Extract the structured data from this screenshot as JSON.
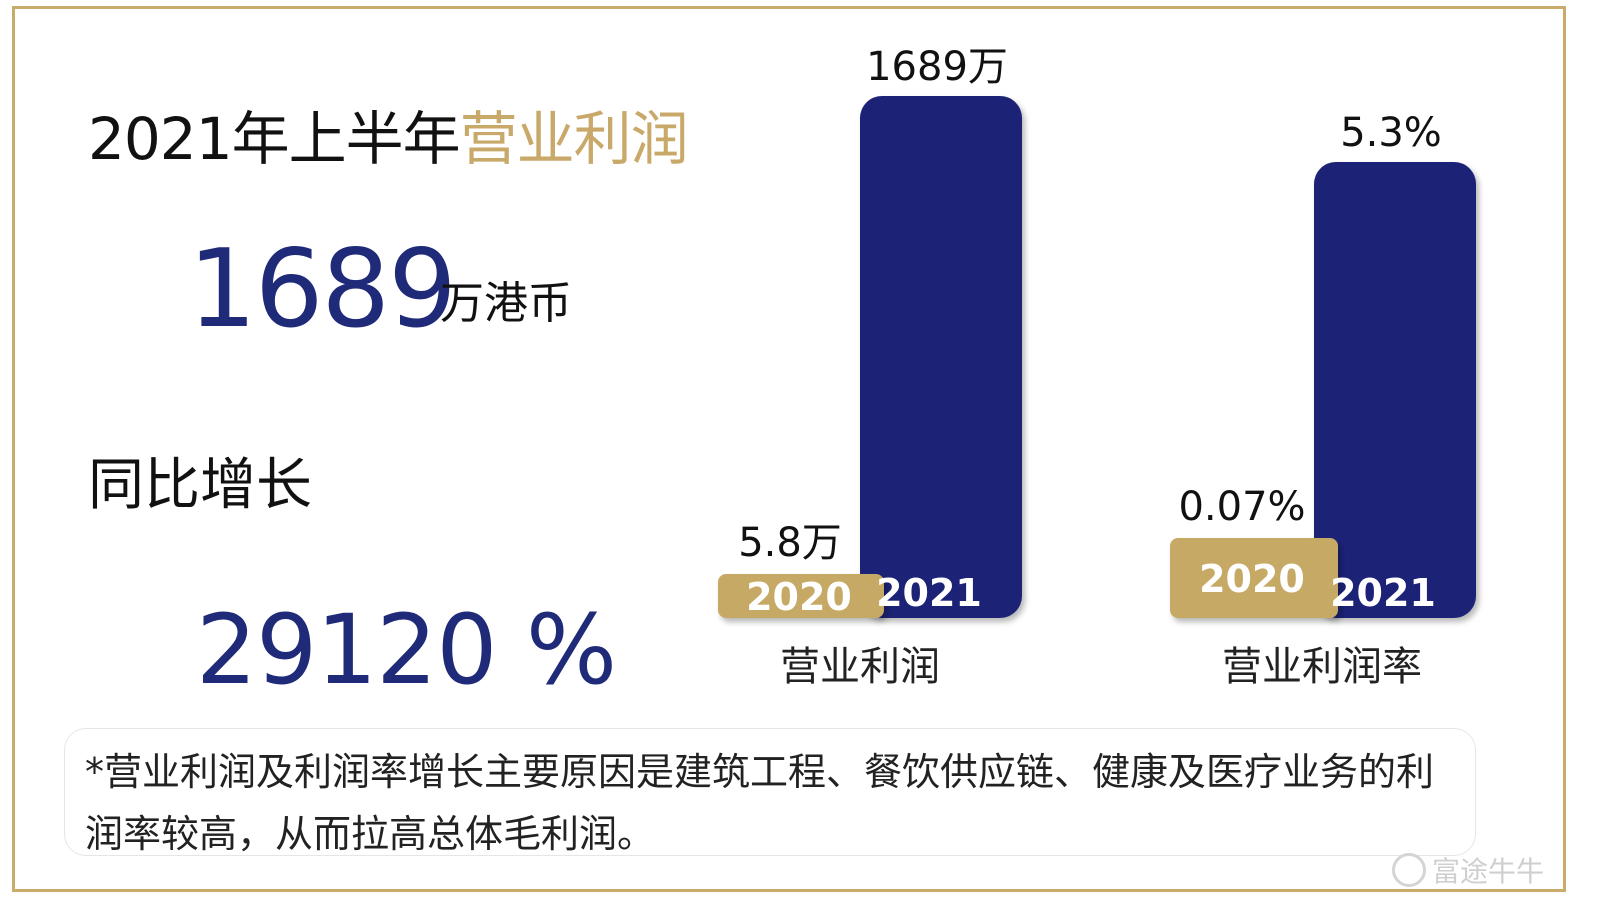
{
  "header": {
    "title_main": "2021年上半年",
    "title_accent": "营业利润"
  },
  "highlight": {
    "value": "1689",
    "unit": "万港币",
    "yoy_label": "同比增长",
    "yoy_value": "29120 %"
  },
  "chart_data": [
    {
      "type": "bar",
      "category_label": "营业利润",
      "categories": [
        "2020",
        "2021"
      ],
      "values": [
        5.8,
        1689
      ],
      "value_labels": [
        "5.8万",
        "1689万"
      ],
      "colors": [
        "#c6a965",
        "#1e2376"
      ]
    },
    {
      "type": "bar",
      "category_label": "营业利润率",
      "categories": [
        "2020",
        "2021"
      ],
      "values": [
        0.07,
        5.3
      ],
      "value_labels": [
        "0.07%",
        "5.3%"
      ],
      "colors": [
        "#c6a965",
        "#1e2376"
      ]
    }
  ],
  "footnote": "*营业利润及利润率增长主要原因是建筑工程、餐饮供应链、健康及医疗业务的利润率较高，从而拉高总体毛利润。",
  "watermark": {
    "text": "富途牛牛",
    "icon": "futu-logo-icon"
  }
}
